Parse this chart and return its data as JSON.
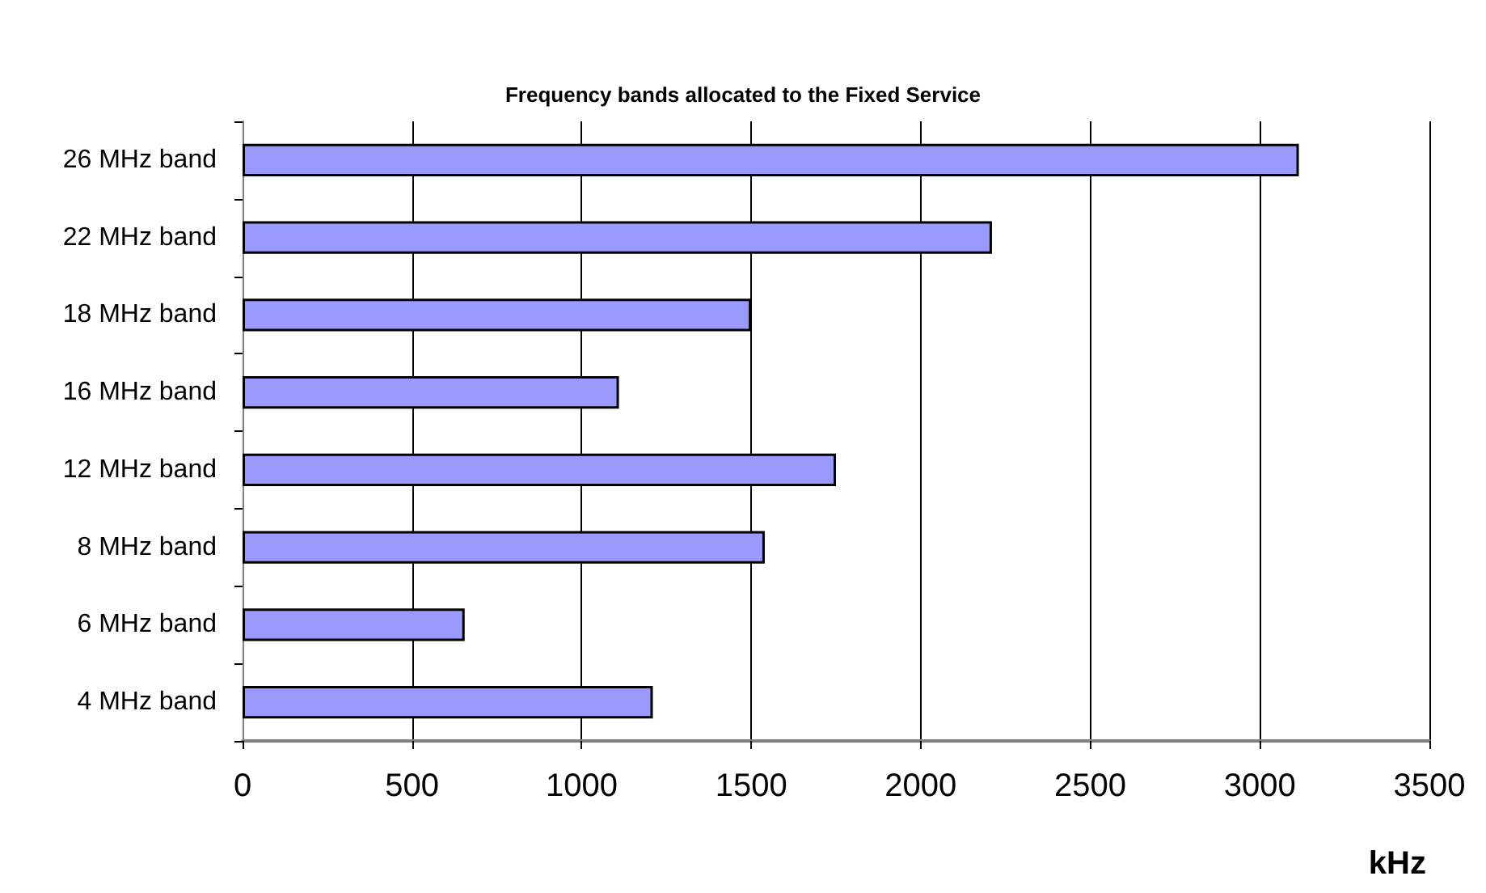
{
  "chart_data": {
    "type": "bar",
    "orientation": "horizontal",
    "title": "Frequency bands allocated to the Fixed Service",
    "xlabel": "kHz",
    "categories": [
      "26 MHz band",
      "22 MHz band",
      "18 MHz band",
      "16 MHz band",
      "12 MHz band",
      "8 MHz band",
      "6 MHz band",
      "4 MHz band"
    ],
    "values": [
      3115,
      2210,
      1500,
      1110,
      1750,
      1540,
      655,
      1210
    ],
    "color": "#9999ff",
    "xlim": [
      0,
      3500
    ],
    "xticks": [
      0,
      500,
      1000,
      1500,
      2000,
      2500,
      3000,
      3500
    ],
    "grid": "x"
  }
}
